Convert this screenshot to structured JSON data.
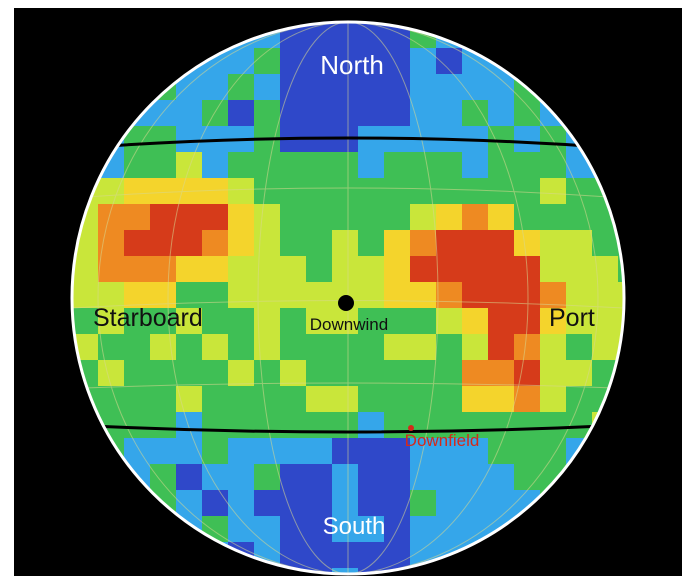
{
  "map": {
    "labels": {
      "north": "North",
      "south": "South",
      "starboard": "Starboard",
      "port": "Port",
      "downwind": "Downwind",
      "downfield": "Downfield"
    },
    "markers": {
      "downwind_color": "#000000",
      "downfield_color": "#d42a1a"
    },
    "colors": {
      "background": "#000000",
      "rim": "#ffffff",
      "band_lines": "#000000",
      "grid": "#d8d890",
      "scale": [
        "#2f48c9",
        "#35a6ea",
        "#3fbf55",
        "#c9e63a",
        "#f4d42c",
        "#ee8a22",
        "#d63b1a"
      ]
    }
  }
}
